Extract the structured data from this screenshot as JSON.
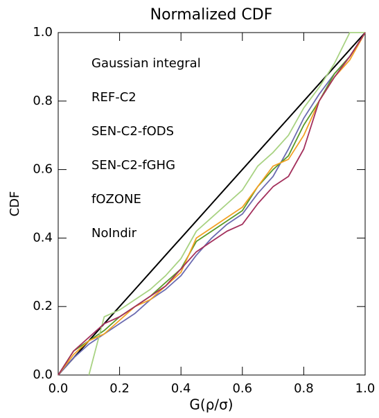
{
  "chart_data": {
    "type": "line",
    "title": "Normalized CDF",
    "x_label": "G(ρ/σ)",
    "y_label": "CDF",
    "x": [
      0,
      0.05,
      0.1,
      0.15,
      0.2,
      0.25,
      0.3,
      0.35,
      0.4,
      0.45,
      0.5,
      0.55,
      0.6,
      0.65,
      0.7,
      0.75,
      0.8,
      0.85,
      0.9,
      0.95,
      1.0
    ],
    "series": [
      {
        "name": "Gaussian integral",
        "color": "#000000",
        "values": [
          0,
          0.05,
          0.1,
          0.15,
          0.2,
          0.25,
          0.3,
          0.35,
          0.4,
          0.45,
          0.5,
          0.55,
          0.6,
          0.65,
          0.7,
          0.75,
          0.8,
          0.85,
          0.9,
          0.95,
          1.0
        ]
      },
      {
        "name": "REF-C2",
        "color": "#6b6bb0",
        "values": [
          0,
          0.05,
          0.09,
          0.12,
          0.15,
          0.18,
          0.22,
          0.25,
          0.29,
          0.35,
          0.4,
          0.44,
          0.47,
          0.53,
          0.58,
          0.66,
          0.75,
          0.82,
          0.88,
          0.93,
          1.0
        ]
      },
      {
        "name": "SEN-C2-fODS",
        "color": "#5a9a28",
        "values": [
          0,
          0.07,
          0.1,
          0.13,
          0.17,
          0.2,
          0.23,
          0.27,
          0.31,
          0.39,
          0.42,
          0.45,
          0.48,
          0.55,
          0.6,
          0.64,
          0.73,
          0.8,
          0.88,
          0.93,
          1.0
        ]
      },
      {
        "name": "SEN-C2-fGHG",
        "color": "#a8d282",
        "values": [
          null,
          null,
          0,
          0.17,
          0.19,
          0.22,
          0.25,
          0.29,
          0.34,
          0.42,
          0.46,
          0.5,
          0.54,
          0.61,
          0.65,
          0.7,
          0.78,
          0.84,
          0.91,
          1.0,
          1.0
        ]
      },
      {
        "name": "fOZONE",
        "color": "#f2a124",
        "values": [
          0,
          0.06,
          0.1,
          0.12,
          0.16,
          0.2,
          0.22,
          0.26,
          0.3,
          0.4,
          0.43,
          0.46,
          0.49,
          0.55,
          0.61,
          0.63,
          0.7,
          0.8,
          0.87,
          0.92,
          1.0
        ]
      },
      {
        "name": "NoIndir",
        "color": "#a3305c",
        "values": [
          0,
          0.07,
          0.11,
          0.15,
          0.17,
          0.2,
          0.23,
          0.26,
          0.31,
          0.36,
          0.39,
          0.42,
          0.44,
          0.5,
          0.55,
          0.58,
          0.66,
          0.8,
          0.87,
          0.93,
          1.0
        ]
      }
    ],
    "xlim": [
      0,
      1
    ],
    "ylim": [
      0,
      1
    ],
    "xticks": [
      {
        "value": 0,
        "label": "0.0"
      },
      0.2,
      0.4,
      0.6,
      0.8,
      {
        "value": 1,
        "label": "1.0"
      }
    ],
    "yticks": [
      {
        "value": 0,
        "label": "0.0"
      },
      0.2,
      0.4,
      0.6,
      0.8,
      {
        "value": 1,
        "label": "1.0"
      }
    ],
    "legend": "upper left"
  }
}
